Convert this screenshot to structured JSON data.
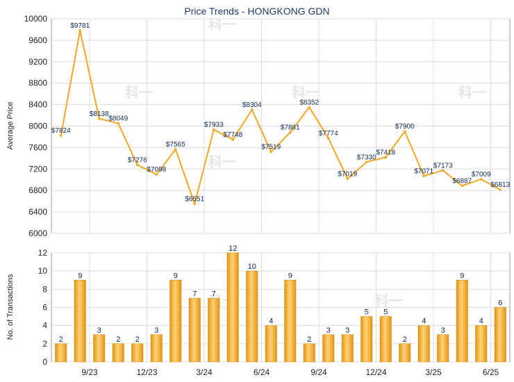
{
  "chart_data": [
    {
      "type": "line",
      "title": "Price Trends - HONGKONG GDN",
      "ylabel": "Average Price",
      "ylim": [
        6000,
        10000
      ],
      "yticks": [
        6000,
        6400,
        6800,
        7200,
        7600,
        8000,
        8400,
        8800,
        9200,
        9600,
        10000
      ],
      "x_tick_labels": [
        "9/23",
        "12/23",
        "3/24",
        "6/24",
        "9/24",
        "12/24",
        "3/25",
        "6/25"
      ],
      "grid": true,
      "color": "#f5a623",
      "values": [
        7824,
        9781,
        8138,
        8049,
        7276,
        7098,
        7565,
        6551,
        7933,
        7748,
        8304,
        7519,
        7881,
        8352,
        7774,
        7019,
        7330,
        7418,
        7900,
        7071,
        7173,
        6887,
        7009,
        6813
      ],
      "labels": [
        "$7824",
        "$9781",
        "$8138",
        "$8049",
        "$7276",
        "$7098",
        "$7565",
        "$6551",
        "$7933",
        "$7748",
        "$8304",
        "$7519",
        "$7881",
        "$8352",
        "$7774",
        "$7019",
        "$7330",
        "$7418",
        "$7900",
        "$7071",
        "$7173",
        "$6887",
        "$7009",
        "$6813"
      ]
    },
    {
      "type": "bar",
      "ylabel": "No. of Transactions",
      "ylim": [
        0,
        12
      ],
      "yticks": [
        0,
        2,
        4,
        6,
        8,
        10,
        12
      ],
      "x_tick_labels": [
        "9/23",
        "12/23",
        "3/24",
        "6/24",
        "9/24",
        "12/24",
        "3/25",
        "6/25"
      ],
      "grid": true,
      "color": "#f5a623",
      "values": [
        2,
        9,
        3,
        2,
        2,
        3,
        9,
        7,
        7,
        12,
        10,
        4,
        9,
        2,
        3,
        3,
        5,
        5,
        2,
        4,
        3,
        9,
        4,
        6
      ]
    }
  ],
  "watermark": "科一"
}
